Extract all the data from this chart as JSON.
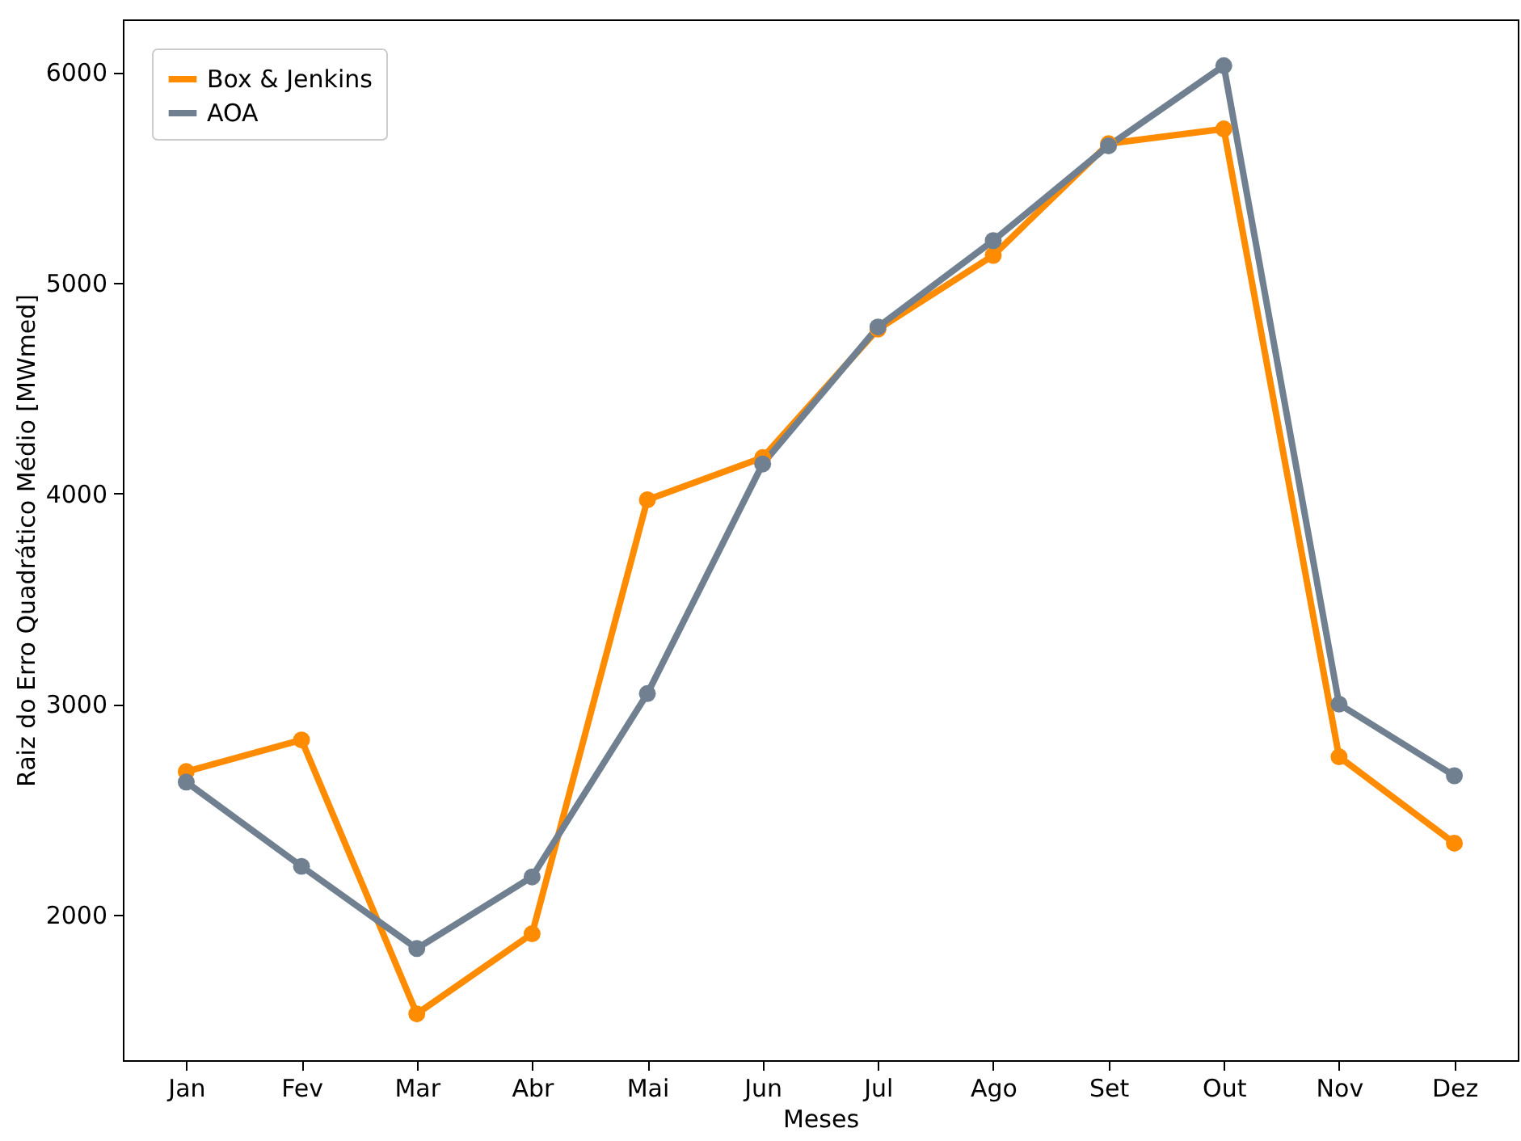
{
  "chart_data": {
    "type": "line",
    "xlabel": "Meses",
    "ylabel": "Raiz do Erro Quadrático Médio [MWmed]",
    "categories": [
      "Jan",
      "Fev",
      "Mar",
      "Abr",
      "Mai",
      "Jun",
      "Jul",
      "Ago",
      "Set",
      "Out",
      "Nov",
      "Dez"
    ],
    "series": [
      {
        "name": "Box & Jenkins",
        "color": "#ff8c00",
        "values": [
          2680,
          2830,
          1530,
          1910,
          3970,
          4170,
          4780,
          5130,
          5660,
          5730,
          2750,
          2340
        ]
      },
      {
        "name": "AOA",
        "color": "#708090",
        "values": [
          2630,
          2230,
          1840,
          2180,
          3050,
          4140,
          4790,
          5200,
          5650,
          6030,
          3000,
          2660
        ]
      }
    ],
    "ylim": [
      1310,
      6250
    ],
    "yticks": [
      2000,
      3000,
      4000,
      5000,
      6000
    ],
    "grid": false,
    "legend": "top left",
    "marker": "circle",
    "line_style": "solid"
  }
}
